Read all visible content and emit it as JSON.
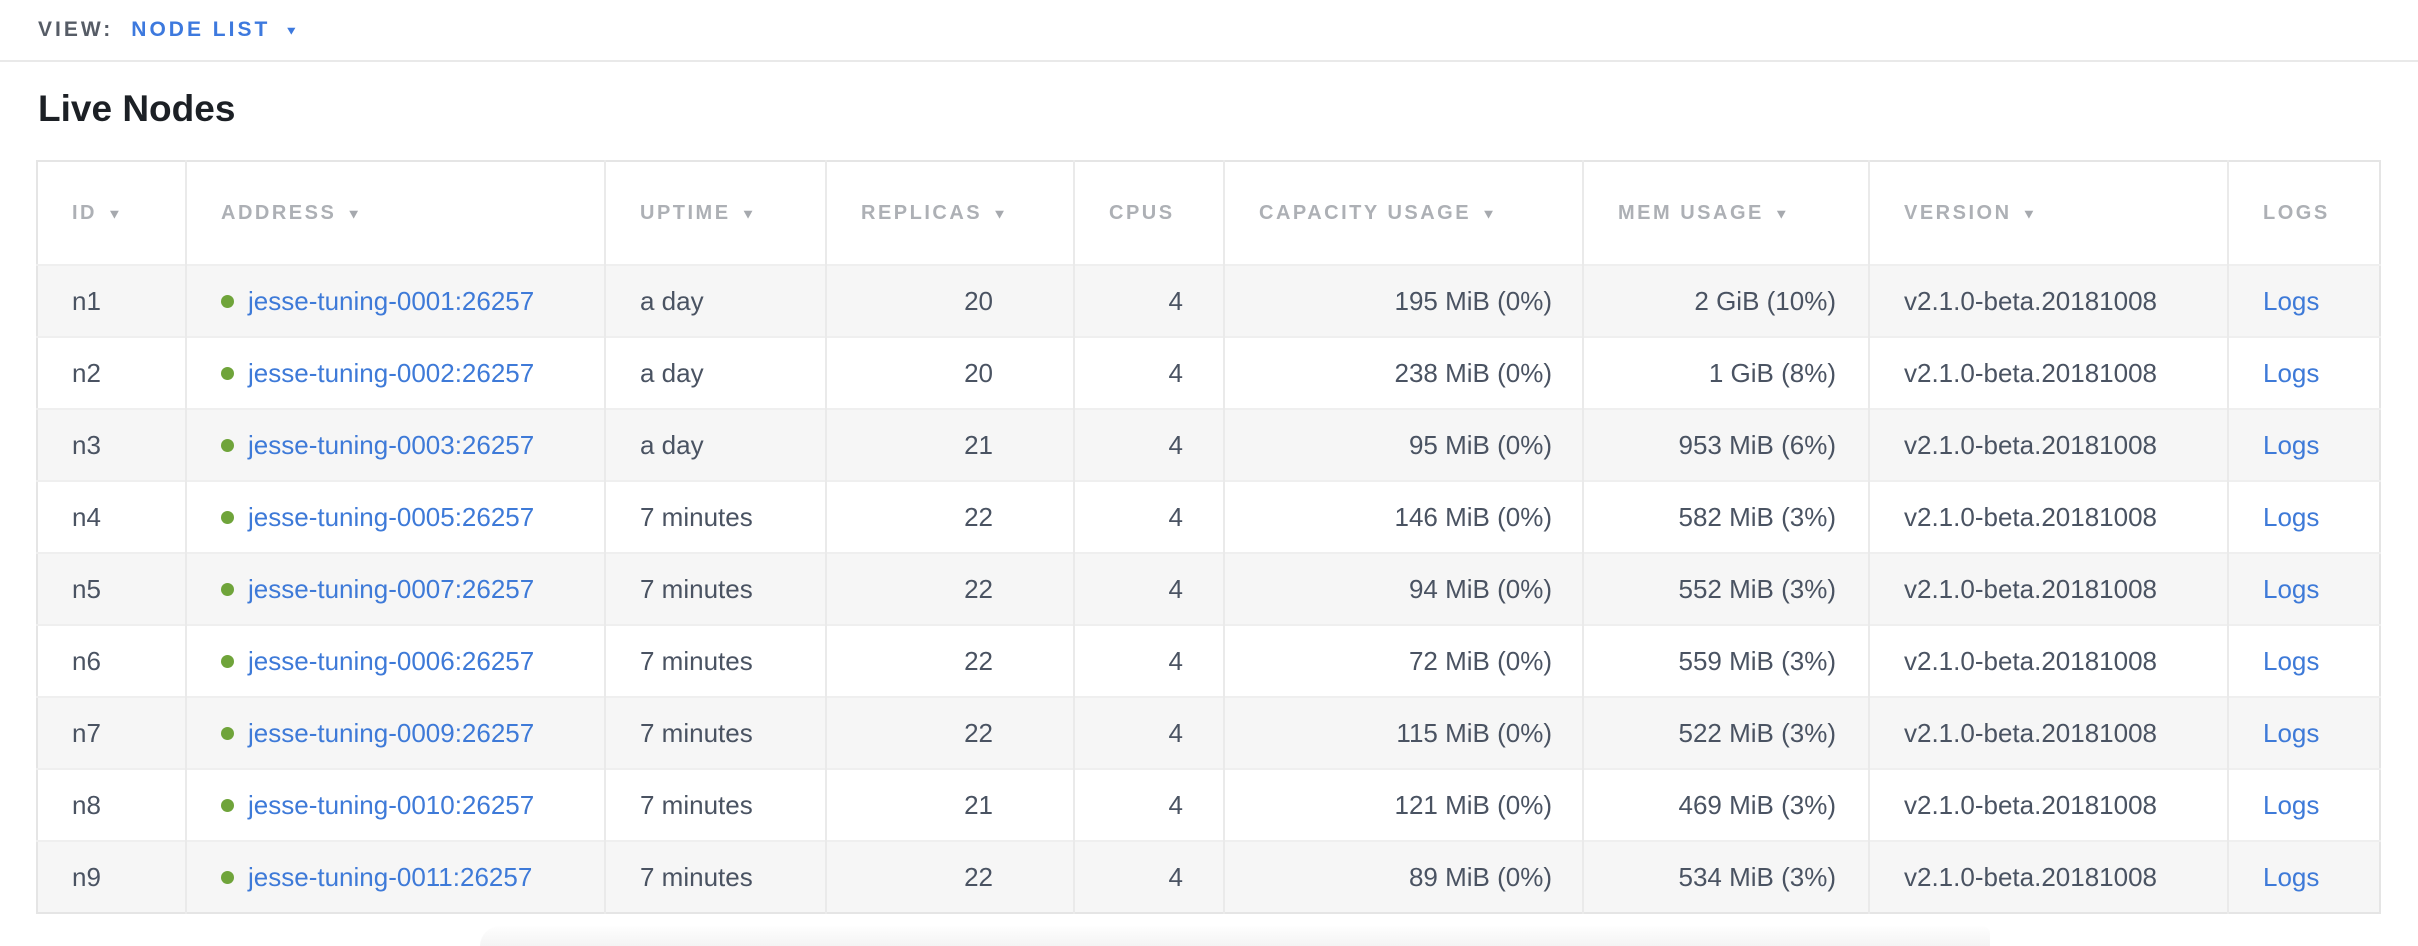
{
  "view_bar": {
    "label": "VIEW:",
    "value": "NODE LIST",
    "caret_icon": "▼"
  },
  "page": {
    "title": "Live Nodes"
  },
  "colors": {
    "accent_blue": "#3d79de",
    "link_blue": "#3e7ad8",
    "healthy_green": "#6fa43a",
    "header_gray": "#adb0b5",
    "cell_slate": "#4a5362"
  },
  "table": {
    "sort_icon": "▼",
    "columns": [
      {
        "id": "id",
        "label": "ID",
        "sortable": true,
        "align": "left"
      },
      {
        "id": "address",
        "label": "ADDRESS",
        "sortable": true,
        "align": "left"
      },
      {
        "id": "uptime",
        "label": "UPTIME",
        "sortable": true,
        "align": "left"
      },
      {
        "id": "replicas",
        "label": "REPLICAS",
        "sortable": true,
        "align": "right"
      },
      {
        "id": "cpus",
        "label": "CPUS",
        "sortable": false,
        "align": "right"
      },
      {
        "id": "capacity",
        "label": "CAPACITY USAGE",
        "sortable": true,
        "align": "right"
      },
      {
        "id": "mem",
        "label": "MEM USAGE",
        "sortable": true,
        "align": "right"
      },
      {
        "id": "version",
        "label": "VERSION",
        "sortable": true,
        "align": "left"
      },
      {
        "id": "logs",
        "label": "LOGS",
        "sortable": false,
        "align": "left"
      }
    ],
    "rows": [
      {
        "id": "n1",
        "status": "healthy",
        "address": "jesse-tuning-0001:26257",
        "uptime": "a day",
        "replicas": "20",
        "cpus": "4",
        "capacity": "195 MiB (0%)",
        "mem": "2 GiB (10%)",
        "version": "v2.1.0-beta.20181008",
        "logs": "Logs"
      },
      {
        "id": "n2",
        "status": "healthy",
        "address": "jesse-tuning-0002:26257",
        "uptime": "a day",
        "replicas": "20",
        "cpus": "4",
        "capacity": "238 MiB (0%)",
        "mem": "1 GiB (8%)",
        "version": "v2.1.0-beta.20181008",
        "logs": "Logs"
      },
      {
        "id": "n3",
        "status": "healthy",
        "address": "jesse-tuning-0003:26257",
        "uptime": "a day",
        "replicas": "21",
        "cpus": "4",
        "capacity": "95 MiB (0%)",
        "mem": "953 MiB (6%)",
        "version": "v2.1.0-beta.20181008",
        "logs": "Logs"
      },
      {
        "id": "n4",
        "status": "healthy",
        "address": "jesse-tuning-0005:26257",
        "uptime": "7 minutes",
        "replicas": "22",
        "cpus": "4",
        "capacity": "146 MiB (0%)",
        "mem": "582 MiB (3%)",
        "version": "v2.1.0-beta.20181008",
        "logs": "Logs"
      },
      {
        "id": "n5",
        "status": "healthy",
        "address": "jesse-tuning-0007:26257",
        "uptime": "7 minutes",
        "replicas": "22",
        "cpus": "4",
        "capacity": "94 MiB (0%)",
        "mem": "552 MiB (3%)",
        "version": "v2.1.0-beta.20181008",
        "logs": "Logs"
      },
      {
        "id": "n6",
        "status": "healthy",
        "address": "jesse-tuning-0006:26257",
        "uptime": "7 minutes",
        "replicas": "22",
        "cpus": "4",
        "capacity": "72 MiB (0%)",
        "mem": "559 MiB (3%)",
        "version": "v2.1.0-beta.20181008",
        "logs": "Logs"
      },
      {
        "id": "n7",
        "status": "healthy",
        "address": "jesse-tuning-0009:26257",
        "uptime": "7 minutes",
        "replicas": "22",
        "cpus": "4",
        "capacity": "115 MiB (0%)",
        "mem": "522 MiB (3%)",
        "version": "v2.1.0-beta.20181008",
        "logs": "Logs"
      },
      {
        "id": "n8",
        "status": "healthy",
        "address": "jesse-tuning-0010:26257",
        "uptime": "7 minutes",
        "replicas": "21",
        "cpus": "4",
        "capacity": "121 MiB (0%)",
        "mem": "469 MiB (3%)",
        "version": "v2.1.0-beta.20181008",
        "logs": "Logs"
      },
      {
        "id": "n9",
        "status": "healthy",
        "address": "jesse-tuning-0011:26257",
        "uptime": "7 minutes",
        "replicas": "22",
        "cpus": "4",
        "capacity": "89 MiB (0%)",
        "mem": "534 MiB (3%)",
        "version": "v2.1.0-beta.20181008",
        "logs": "Logs"
      }
    ]
  }
}
